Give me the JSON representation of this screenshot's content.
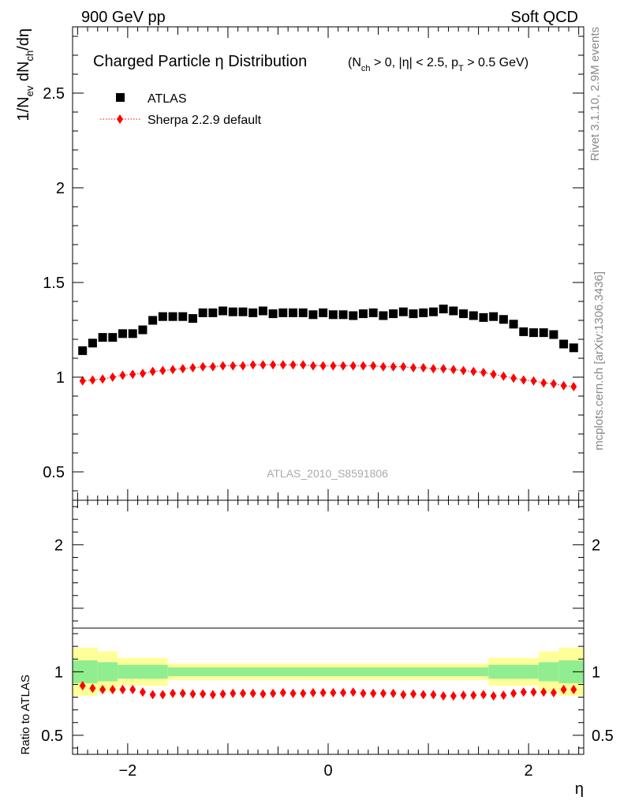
{
  "header": {
    "left": "900 GeV pp",
    "right": "Soft QCD"
  },
  "side_text": {
    "rivet": "Rivet 3.1.10,  2.9M events",
    "mcplots": "mcplots.cern.ch [arXiv:1306.3436]"
  },
  "chart_data": [
    {
      "type": "scatter",
      "title": "Charged Particle η Distribution",
      "title_cuts": "(N_ch > 0, |η| < 2.5, p_T > 0.5 GeV)",
      "ylabel": "1/N_ev dN_ch/dη",
      "xlim": [
        -2.55,
        2.55
      ],
      "ylim": [
        0.35,
        2.85
      ],
      "grid": false,
      "legend_position": "top-left",
      "analysis_label": "ATLAS_2010_S8591806",
      "y_ticks": [
        "0.5",
        "1",
        "1.5",
        "2",
        "2.5"
      ],
      "x": [
        -2.45,
        -2.35,
        -2.25,
        -2.15,
        -2.05,
        -1.95,
        -1.85,
        -1.75,
        -1.65,
        -1.55,
        -1.45,
        -1.35,
        -1.25,
        -1.15,
        -1.05,
        -0.95,
        -0.85,
        -0.75,
        -0.65,
        -0.55,
        -0.45,
        -0.35,
        -0.25,
        -0.15,
        -0.05,
        0.05,
        0.15,
        0.25,
        0.35,
        0.45,
        0.55,
        0.65,
        0.75,
        0.85,
        0.95,
        1.05,
        1.15,
        1.25,
        1.35,
        1.45,
        1.55,
        1.65,
        1.75,
        1.85,
        1.95,
        2.05,
        2.15,
        2.25,
        2.35,
        2.45
      ],
      "series": [
        {
          "name": "ATLAS",
          "marker": "square",
          "color": "#000000",
          "values": [
            1.14,
            1.18,
            1.21,
            1.21,
            1.23,
            1.23,
            1.25,
            1.3,
            1.32,
            1.32,
            1.32,
            1.31,
            1.34,
            1.34,
            1.35,
            1.345,
            1.345,
            1.34,
            1.35,
            1.335,
            1.34,
            1.34,
            1.34,
            1.33,
            1.34,
            1.33,
            1.33,
            1.325,
            1.335,
            1.34,
            1.325,
            1.335,
            1.345,
            1.335,
            1.34,
            1.345,
            1.36,
            1.35,
            1.335,
            1.325,
            1.315,
            1.32,
            1.305,
            1.28,
            1.24,
            1.235,
            1.235,
            1.225,
            1.175,
            1.155
          ]
        },
        {
          "name": "Sherpa 2.2.9 default",
          "marker": "diamond",
          "color": "#ff0000",
          "line_style": "dotted",
          "values": [
            0.98,
            0.985,
            0.99,
            1.0,
            1.01,
            1.015,
            1.02,
            1.03,
            1.035,
            1.04,
            1.045,
            1.05,
            1.055,
            1.055,
            1.06,
            1.06,
            1.06,
            1.065,
            1.065,
            1.065,
            1.065,
            1.065,
            1.065,
            1.06,
            1.06,
            1.06,
            1.06,
            1.06,
            1.06,
            1.06,
            1.055,
            1.055,
            1.055,
            1.05,
            1.05,
            1.045,
            1.045,
            1.04,
            1.035,
            1.03,
            1.025,
            1.015,
            1.005,
            0.995,
            0.985,
            0.98,
            0.97,
            0.965,
            0.955,
            0.95
          ]
        }
      ]
    },
    {
      "type": "scatter",
      "ylabel": "Ratio to ATLAS",
      "xlabel": "η",
      "xlim": [
        -2.55,
        2.55
      ],
      "ylim": [
        0.35,
        2.35
      ],
      "grid": false,
      "y_ticks": [
        "0.5",
        "1",
        "2"
      ],
      "x_ticks": [
        "−2",
        "0",
        "2"
      ],
      "reference_line": 1,
      "band_colors": {
        "stat": "#90ee90",
        "total": "#ffff99"
      },
      "band_x_edges": [
        -2.55,
        -2.3,
        -2.1,
        -1.6,
        1.6,
        2.1,
        2.3,
        2.55
      ],
      "band_total_halfwidth": [
        0.19,
        0.16,
        0.11,
        0.065,
        0.11,
        0.16,
        0.19
      ],
      "band_stat_halfwidth": [
        0.09,
        0.075,
        0.055,
        0.035,
        0.055,
        0.075,
        0.09
      ],
      "series": [
        {
          "name": "Sherpa 2.2.9 default",
          "marker": "diamond",
          "color": "#ff0000",
          "values": [
            0.89,
            0.87,
            0.86,
            0.86,
            0.86,
            0.86,
            0.84,
            0.82,
            0.82,
            0.83,
            0.83,
            0.825,
            0.825,
            0.82,
            0.825,
            0.83,
            0.83,
            0.83,
            0.825,
            0.83,
            0.835,
            0.83,
            0.83,
            0.835,
            0.835,
            0.835,
            0.835,
            0.84,
            0.83,
            0.83,
            0.83,
            0.83,
            0.82,
            0.825,
            0.82,
            0.82,
            0.81,
            0.81,
            0.815,
            0.815,
            0.82,
            0.81,
            0.815,
            0.83,
            0.84,
            0.84,
            0.84,
            0.835,
            0.86,
            0.86
          ]
        }
      ]
    }
  ]
}
